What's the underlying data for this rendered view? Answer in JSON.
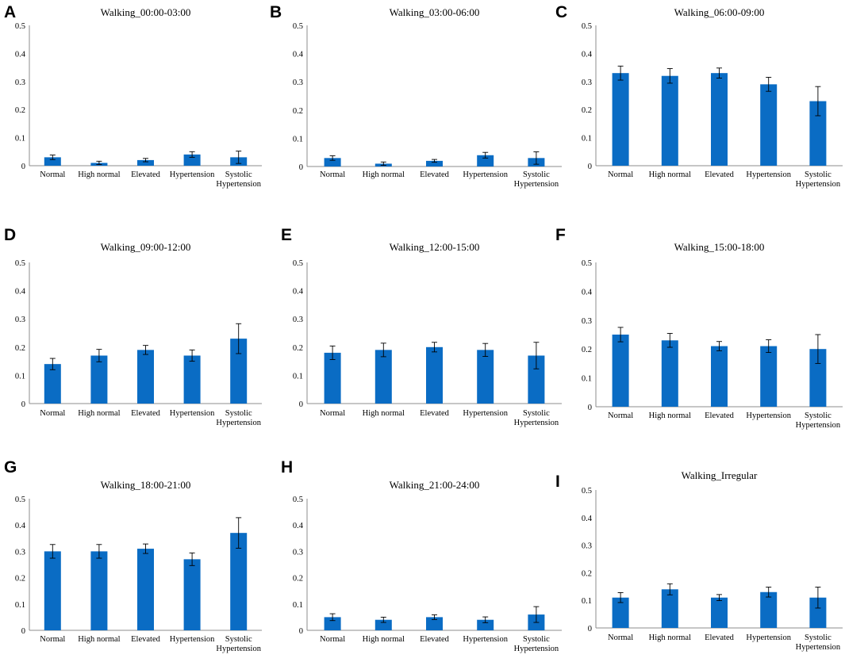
{
  "figure": {
    "bar_color": "#0a6cc4",
    "axis_color": "#8c8c8c",
    "text_color": "#000000"
  },
  "categories": [
    "Normal",
    "High normal",
    "Elevated",
    "Hypertension",
    "Systolic Hypertension"
  ],
  "chart_data": [
    {
      "panel": "A",
      "type": "bar",
      "title": "Walking_00:00-03:00",
      "categories": [
        "Normal",
        "High normal",
        "Elevated",
        "Hypertension",
        "Systolic Hypertension"
      ],
      "values": [
        0.03,
        0.01,
        0.02,
        0.04,
        0.03
      ],
      "errors": [
        0.008,
        0.006,
        0.006,
        0.01,
        0.022
      ],
      "ylim": [
        0,
        0.5
      ],
      "yticks": [
        "0",
        "0.1",
        "0.2",
        "0.3",
        "0.4",
        "0.5"
      ],
      "xlabel": "",
      "ylabel": ""
    },
    {
      "panel": "B",
      "type": "bar",
      "title": "Walking_03:00-06:00",
      "categories": [
        "Normal",
        "High normal",
        "Elevated",
        "Hypertension",
        "Systolic Hypertension"
      ],
      "values": [
        0.03,
        0.01,
        0.02,
        0.04,
        0.03
      ],
      "errors": [
        0.008,
        0.006,
        0.005,
        0.01,
        0.022
      ],
      "ylim": [
        0,
        0.5
      ],
      "yticks": [
        "0",
        "0.1",
        "0.2",
        "0.3",
        "0.4",
        "0.5"
      ],
      "xlabel": "",
      "ylabel": ""
    },
    {
      "panel": "C",
      "type": "bar",
      "title": "Walking_06:00-09:00",
      "categories": [
        "Normal",
        "High normal",
        "Elevated",
        "Hypertension",
        "Systolic Hypertension"
      ],
      "values": [
        0.33,
        0.32,
        0.33,
        0.29,
        0.23
      ],
      "errors": [
        0.025,
        0.026,
        0.018,
        0.025,
        0.052
      ],
      "ylim": [
        0,
        0.5
      ],
      "yticks": [
        "0",
        "0.1",
        "0.2",
        "0.3",
        "0.4",
        "0.5"
      ],
      "xlabel": "",
      "ylabel": ""
    },
    {
      "panel": "D",
      "type": "bar",
      "title": "Walking_09:00-12:00",
      "categories": [
        "Normal",
        "High normal",
        "Elevated",
        "Hypertension",
        "Systolic Hypertension"
      ],
      "values": [
        0.14,
        0.17,
        0.19,
        0.17,
        0.23
      ],
      "errors": [
        0.02,
        0.022,
        0.016,
        0.02,
        0.053
      ],
      "ylim": [
        0,
        0.5
      ],
      "yticks": [
        "0",
        "0.1",
        "0.2",
        "0.3",
        "0.4",
        "0.5"
      ],
      "xlabel": "",
      "ylabel": ""
    },
    {
      "panel": "E",
      "type": "bar",
      "title": "Walking_12:00-15:00",
      "categories": [
        "Normal",
        "High normal",
        "Elevated",
        "Hypertension",
        "Systolic Hypertension"
      ],
      "values": [
        0.18,
        0.19,
        0.2,
        0.19,
        0.17
      ],
      "errors": [
        0.024,
        0.024,
        0.017,
        0.023,
        0.047
      ],
      "ylim": [
        0,
        0.5
      ],
      "yticks": [
        "0",
        "0.1",
        "0.2",
        "0.3",
        "0.4",
        "0.5"
      ],
      "xlabel": "",
      "ylabel": ""
    },
    {
      "panel": "F",
      "type": "bar",
      "title": "Walking_15:00-18:00",
      "categories": [
        "Normal",
        "High normal",
        "Elevated",
        "Hypertension",
        "Systolic Hypertension"
      ],
      "values": [
        0.25,
        0.23,
        0.21,
        0.21,
        0.2
      ],
      "errors": [
        0.025,
        0.024,
        0.016,
        0.022,
        0.05
      ],
      "ylim": [
        0,
        0.5
      ],
      "yticks": [
        "0",
        "0.1",
        "0.2",
        "0.3",
        "0.4",
        "0.5"
      ],
      "xlabel": "",
      "ylabel": ""
    },
    {
      "panel": "G",
      "type": "bar",
      "title": "Walking_18:00-21:00",
      "categories": [
        "Normal",
        "High normal",
        "Elevated",
        "Hypertension",
        "Systolic Hypertension"
      ],
      "values": [
        0.3,
        0.3,
        0.31,
        0.27,
        0.37
      ],
      "errors": [
        0.026,
        0.026,
        0.018,
        0.024,
        0.058
      ],
      "ylim": [
        0,
        0.5
      ],
      "yticks": [
        "0",
        "0.1",
        "0.2",
        "0.3",
        "0.4",
        "0.5"
      ],
      "xlabel": "",
      "ylabel": ""
    },
    {
      "panel": "H",
      "type": "bar",
      "title": "Walking_21:00-24:00",
      "categories": [
        "Normal",
        "High normal",
        "Elevated",
        "Hypertension",
        "Systolic Hypertension"
      ],
      "values": [
        0.05,
        0.04,
        0.05,
        0.04,
        0.06
      ],
      "errors": [
        0.013,
        0.01,
        0.009,
        0.011,
        0.03
      ],
      "ylim": [
        0,
        0.5
      ],
      "yticks": [
        "0",
        "0.1",
        "0.2",
        "0.3",
        "0.4",
        "0.5"
      ],
      "xlabel": "",
      "ylabel": ""
    },
    {
      "panel": "I",
      "type": "bar",
      "title": "Walking_Irregular",
      "categories": [
        "Normal",
        "High normal",
        "Elevated",
        "Hypertension",
        "Systolic Hypertension"
      ],
      "values": [
        0.11,
        0.14,
        0.11,
        0.13,
        0.11
      ],
      "errors": [
        0.018,
        0.02,
        0.011,
        0.018,
        0.038
      ],
      "ylim": [
        0,
        0.5
      ],
      "yticks": [
        "0",
        "0.1",
        "0.2",
        "0.3",
        "0.4",
        "0.5"
      ],
      "xlabel": "",
      "ylabel": ""
    }
  ]
}
